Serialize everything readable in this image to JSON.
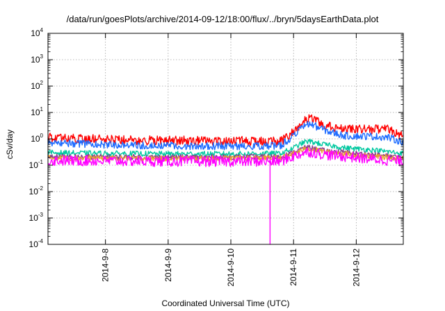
{
  "chart_data": {
    "type": "line",
    "title": "/data/run/goesPlots/archive/2014-09-12/18:00/flux/../bryn/5daysEarthData.plot",
    "xlabel": "Coordinated Universal Time (UTC)",
    "ylabel": "cSv/day",
    "y_scale": "log",
    "ylim": [
      0.0001,
      10000
    ],
    "y_ticks": [
      {
        "value": 0.0001,
        "base": "10",
        "exp": "-4"
      },
      {
        "value": 0.001,
        "base": "10",
        "exp": "-3"
      },
      {
        "value": 0.01,
        "base": "10",
        "exp": "-2"
      },
      {
        "value": 0.1,
        "base": "10",
        "exp": "-1"
      },
      {
        "value": 1,
        "base": "10",
        "exp": "0"
      },
      {
        "value": 10,
        "base": "10",
        "exp": "1"
      },
      {
        "value": 100,
        "base": "10",
        "exp": "2"
      },
      {
        "value": 1000,
        "base": "10",
        "exp": "3"
      },
      {
        "value": 10000,
        "base": "10",
        "exp": "4"
      }
    ],
    "xlim": [
      "2014-09-07 02:00",
      "2014-09-12 18:00"
    ],
    "x_ticks": [
      "2014-9-8",
      "2014-9-9",
      "2014-9-10",
      "2014-9-11",
      "2014-9-12"
    ],
    "x_tick_values": [
      "2014-09-08 00:00",
      "2014-09-09 00:00",
      "2014-09-10 00:00",
      "2014-09-11 00:00",
      "2014-09-12 00:00"
    ],
    "grid": true,
    "legend": "none",
    "dropout": {
      "time": "2014-09-10 15:00",
      "series": "magenta"
    },
    "series": [
      {
        "color": "#ff0000",
        "noise": 0.18,
        "values": [
          [
            "2014-09-07 02:00",
            1.1
          ],
          [
            "2014-09-08 00:00",
            0.95
          ],
          [
            "2014-09-09 00:00",
            0.85
          ],
          [
            "2014-09-10 00:00",
            0.85
          ],
          [
            "2014-09-10 19:00",
            0.8
          ],
          [
            "2014-09-10 23:00",
            1.5
          ],
          [
            "2014-09-11 04:00",
            5.0
          ],
          [
            "2014-09-11 06:00",
            6.0
          ],
          [
            "2014-09-11 10:00",
            4.2
          ],
          [
            "2014-09-11 14:00",
            3.0
          ],
          [
            "2014-09-11 20:00",
            2.2
          ],
          [
            "2014-09-12 06:00",
            2.3
          ],
          [
            "2014-09-12 12:00",
            2.2
          ],
          [
            "2014-09-12 18:00",
            1.3
          ]
        ]
      },
      {
        "color": "#1e6cff",
        "noise": 0.14,
        "values": [
          [
            "2014-09-07 02:00",
            0.72
          ],
          [
            "2014-09-08 00:00",
            0.6
          ],
          [
            "2014-09-09 00:00",
            0.55
          ],
          [
            "2014-09-10 00:00",
            0.52
          ],
          [
            "2014-09-10 19:00",
            0.55
          ],
          [
            "2014-09-10 23:00",
            1.1
          ],
          [
            "2014-09-11 04:00",
            3.0
          ],
          [
            "2014-09-11 06:00",
            3.8
          ],
          [
            "2014-09-11 10:00",
            2.6
          ],
          [
            "2014-09-11 14:00",
            1.8
          ],
          [
            "2014-09-11 20:00",
            1.3
          ],
          [
            "2014-09-12 06:00",
            1.25
          ],
          [
            "2014-09-12 12:00",
            1.15
          ],
          [
            "2014-09-12 18:00",
            0.75
          ]
        ]
      },
      {
        "color": "#00c8a0",
        "noise": 0.1,
        "values": [
          [
            "2014-09-07 02:00",
            0.3
          ],
          [
            "2014-09-08 00:00",
            0.28
          ],
          [
            "2014-09-09 00:00",
            0.27
          ],
          [
            "2014-09-10 00:00",
            0.27
          ],
          [
            "2014-09-10 19:00",
            0.28
          ],
          [
            "2014-09-10 23:00",
            0.4
          ],
          [
            "2014-09-11 04:00",
            0.75
          ],
          [
            "2014-09-11 06:00",
            0.8
          ],
          [
            "2014-09-11 12:00",
            0.6
          ],
          [
            "2014-09-11 20:00",
            0.45
          ],
          [
            "2014-09-12 06:00",
            0.38
          ],
          [
            "2014-09-12 18:00",
            0.28
          ]
        ]
      },
      {
        "color": "#8b3a8b",
        "noise": 0.1,
        "values": [
          [
            "2014-09-07 02:00",
            0.21
          ],
          [
            "2014-09-09 00:00",
            0.2
          ],
          [
            "2014-09-10 19:00",
            0.21
          ],
          [
            "2014-09-10 23:00",
            0.28
          ],
          [
            "2014-09-11 04:00",
            0.45
          ],
          [
            "2014-09-11 06:00",
            0.47
          ],
          [
            "2014-09-11 12:00",
            0.35
          ],
          [
            "2014-09-12 06:00",
            0.25
          ],
          [
            "2014-09-12 18:00",
            0.2
          ]
        ]
      },
      {
        "color": "#e8a030",
        "noise": 0.1,
        "values": [
          [
            "2014-09-07 02:00",
            0.19
          ],
          [
            "2014-09-09 00:00",
            0.18
          ],
          [
            "2014-09-10 19:00",
            0.19
          ],
          [
            "2014-09-10 23:00",
            0.25
          ],
          [
            "2014-09-11 04:00",
            0.4
          ],
          [
            "2014-09-11 06:00",
            0.42
          ],
          [
            "2014-09-11 12:00",
            0.32
          ],
          [
            "2014-09-12 06:00",
            0.22
          ],
          [
            "2014-09-12 18:00",
            0.18
          ]
        ]
      },
      {
        "color": "#ff00ff",
        "noise": 0.2,
        "values": [
          [
            "2014-09-07 02:00",
            0.15
          ],
          [
            "2014-09-09 00:00",
            0.14
          ],
          [
            "2014-09-10 19:00",
            0.14
          ],
          [
            "2014-09-10 23:00",
            0.2
          ],
          [
            "2014-09-11 04:00",
            0.3
          ],
          [
            "2014-09-11 06:00",
            0.32
          ],
          [
            "2014-09-11 12:00",
            0.25
          ],
          [
            "2014-09-12 06:00",
            0.17
          ],
          [
            "2014-09-12 18:00",
            0.14
          ]
        ]
      }
    ]
  }
}
